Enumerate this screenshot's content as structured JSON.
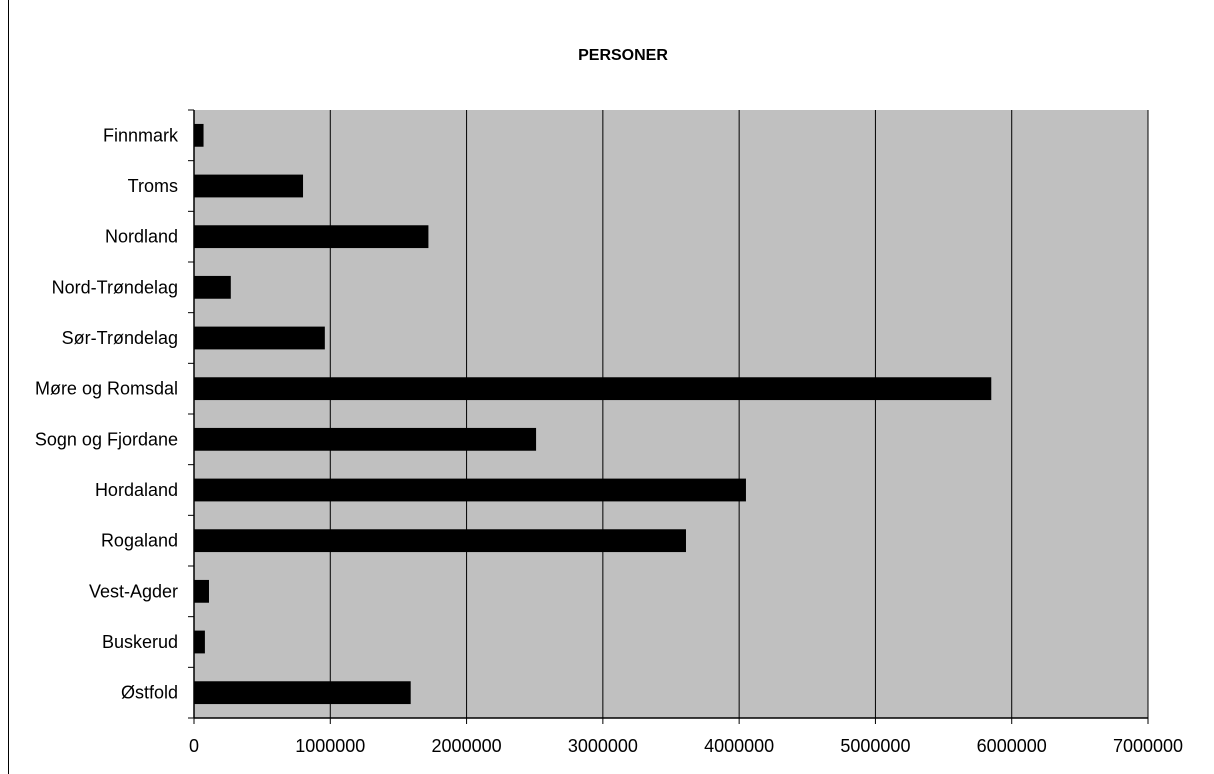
{
  "chart_data": {
    "type": "bar",
    "orientation": "horizontal",
    "title": "PERSONER",
    "xlabel": "",
    "ylabel": "",
    "xlim": [
      0,
      7000000
    ],
    "xticks": [
      "0",
      "1000000",
      "2000000",
      "3000000",
      "4000000",
      "5000000",
      "6000000",
      "7000000"
    ],
    "grid": "vertical",
    "legend": "none",
    "plot_background": "#c0c0c0",
    "bar_color": "#000000",
    "categories": [
      "Finnmark",
      "Troms",
      "Nordland",
      "Nord-Trøndelag",
      "Sør-Trøndelag",
      "Møre og Romsdal",
      "Sogn og Fjordane",
      "Hordaland",
      "Rogaland",
      "Vest-Agder",
      "Buskerud",
      "Østfold"
    ],
    "values": [
      70000,
      800000,
      1720000,
      270000,
      960000,
      5850000,
      2510000,
      4050000,
      3610000,
      110000,
      80000,
      1590000
    ]
  }
}
